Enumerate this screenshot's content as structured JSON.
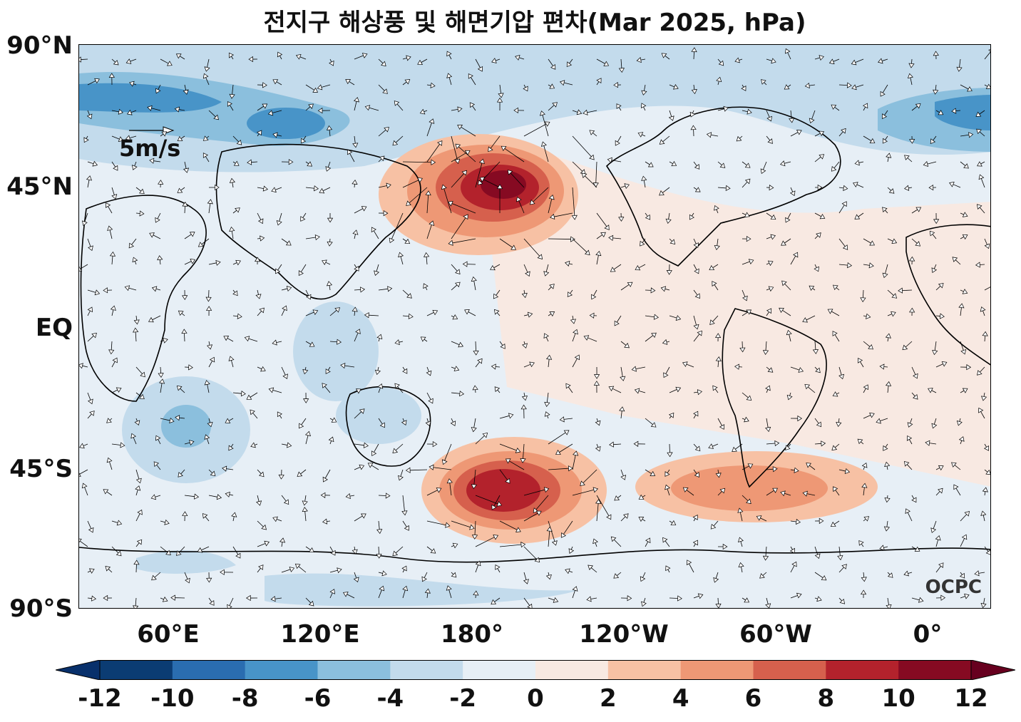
{
  "title": "전지구 해상풍 및 해면기압 편차(Mar 2025, hPa)",
  "latitude_labels": [
    "90°N",
    "45°N",
    "EQ",
    "45°S",
    "90°S"
  ],
  "longitude_labels": [
    "60°E",
    "120°E",
    "180°",
    "120°W",
    "60°W",
    "0°"
  ],
  "reference_vector": "5m/s",
  "watermark": "OCPC",
  "colorbar": {
    "ticks": [
      "-12",
      "-10",
      "-8",
      "-6",
      "-4",
      "-2",
      "0",
      "2",
      "4",
      "6",
      "8",
      "10",
      "12"
    ],
    "colors": [
      "#0b3c73",
      "#2a6db0",
      "#4894c8",
      "#8bbfdd",
      "#c3dbec",
      "#e7eff6",
      "#f8e9e2",
      "#f7c1a4",
      "#ee9875",
      "#d6604d",
      "#b3222c",
      "#860a22"
    ],
    "under_color": "#08306b",
    "over_color": "#67001f"
  }
}
